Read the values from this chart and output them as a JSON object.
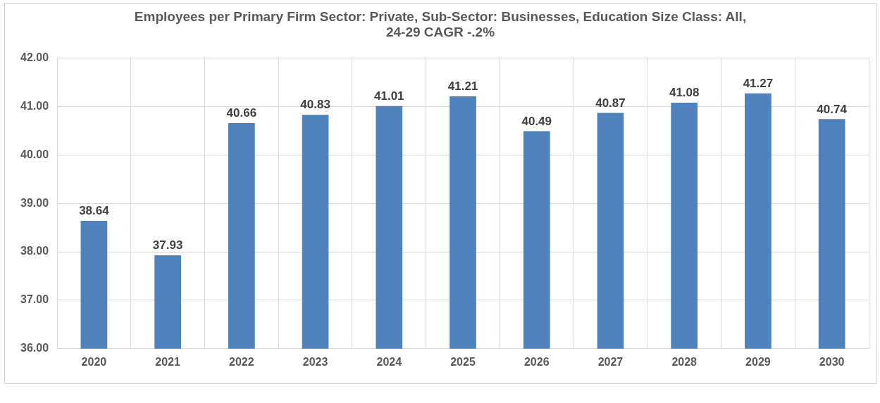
{
  "chart_data": {
    "type": "bar",
    "title": "Employees per Primary Firm Sector: Private, Sub-Sector: Businesses, Education Size Class: All,\n24-29 CAGR -.2%",
    "categories": [
      "2020",
      "2021",
      "2022",
      "2023",
      "2024",
      "2025",
      "2026",
      "2027",
      "2028",
      "2029",
      "2030"
    ],
    "values": [
      38.64,
      37.93,
      40.66,
      40.83,
      41.01,
      41.21,
      40.49,
      40.87,
      41.08,
      41.27,
      40.74
    ],
    "color": "#4f81bd",
    "ylim": [
      36,
      42
    ],
    "yticks": [
      {
        "value": 36,
        "label": "36.00"
      },
      {
        "value": 37,
        "label": "37.00"
      },
      {
        "value": 38,
        "label": "38.00"
      },
      {
        "value": 39,
        "label": "39.00"
      },
      {
        "value": 40,
        "label": "40.00"
      },
      {
        "value": 41,
        "label": "41.00"
      },
      {
        "value": 42,
        "label": "42.00"
      }
    ],
    "grid": true,
    "legend": false,
    "data_labels": true
  }
}
